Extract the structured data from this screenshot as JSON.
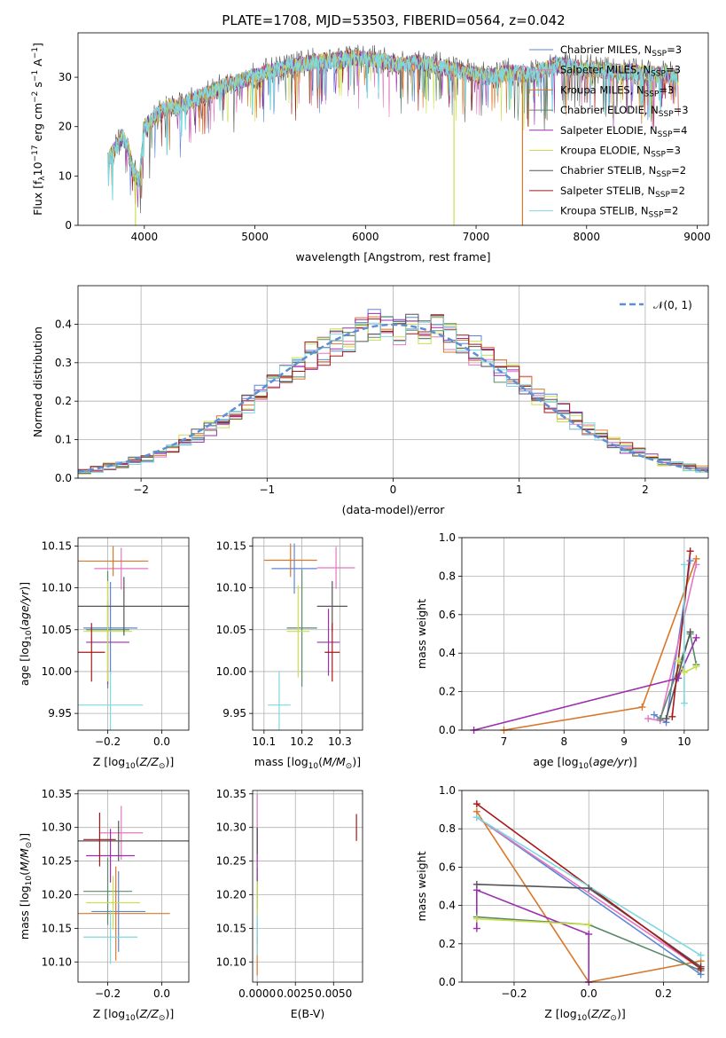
{
  "figure": {
    "title": "PLATE=1708, MJD=53503, FIBERID=0564, z=0.042"
  },
  "chart_data": [
    {
      "id": "spectrum",
      "type": "line",
      "xlabel": "wavelength [Angstrom, rest frame]",
      "ylabel": "Flux [f_λ10^-17 erg cm^-2 s^-1 A^-1]",
      "xlim": [
        3400,
        9100
      ],
      "ylim": [
        0,
        39
      ],
      "xticks": [
        4000,
        5000,
        6000,
        7000,
        8000,
        9000
      ],
      "yticks": [
        0,
        10,
        20,
        30
      ],
      "grid": false,
      "legend_position": "top-right",
      "legend": [
        {
          "label": "Chabrier MILES, N",
          "sub": "SSP",
          "suffix": "=3",
          "color": "#5f86d6"
        },
        {
          "label": "Salpeter MILES, N",
          "sub": "SSP",
          "suffix": "=3",
          "color": "#e377c2"
        },
        {
          "label": "Kroupa MILES, N",
          "sub": "SSP",
          "suffix": "=3",
          "color": "#d9782a"
        },
        {
          "label": "Chabrier ELODIE, N",
          "sub": "SSP",
          "suffix": "=3",
          "color": "#5a8a6a"
        },
        {
          "label": "Salpeter ELODIE, N",
          "sub": "SSP",
          "suffix": "=4",
          "color": "#9b2fae"
        },
        {
          "label": "Kroupa ELODIE, N",
          "sub": "SSP",
          "suffix": "=3",
          "color": "#c9e04a"
        },
        {
          "label": "Chabrier STELIB, N",
          "sub": "SSP",
          "suffix": "=2",
          "color": "#555555"
        },
        {
          "label": "Salpeter STELIB, N",
          "sub": "SSP",
          "suffix": "=2",
          "color": "#a81818"
        },
        {
          "label": "Kroupa STELIB, N",
          "sub": "SSP",
          "suffix": "=2",
          "color": "#7fd8df"
        }
      ],
      "continuum": {
        "x": [
          3670,
          3720,
          3800,
          3850,
          3900,
          3950,
          3980,
          4000,
          4050,
          4100,
          4200,
          4300,
          4400,
          4500,
          4700,
          4900,
          5100,
          5300,
          5500,
          5700,
          5900,
          6100,
          6300,
          6500,
          6700,
          6900,
          7100,
          7300,
          7500,
          7700,
          7900,
          8100,
          8300,
          8500,
          8700,
          8830
        ],
        "y": [
          13,
          15,
          18,
          16,
          11,
          9,
          15,
          20,
          21,
          22,
          24,
          24,
          25,
          26,
          28,
          29.5,
          31,
          32,
          33,
          33.5,
          34,
          33.5,
          32.5,
          33,
          32,
          31,
          30,
          31,
          30.5,
          32.5,
          32,
          31.5,
          31,
          31,
          30.5,
          30
        ]
      },
      "drops": [
        {
          "x": 3920,
          "color": "#c9e04a"
        },
        {
          "x": 6800,
          "color": "#c9e04a"
        },
        {
          "x": 7420,
          "color": "#d9782a"
        }
      ]
    },
    {
      "id": "residual-histogram",
      "type": "line",
      "xlabel": "(data-model)/error",
      "ylabel": "Normed distribution",
      "xlim": [
        -2.5,
        2.5
      ],
      "ylim": [
        0,
        0.5
      ],
      "xticks": [
        -2,
        -1,
        0,
        1,
        2
      ],
      "yticks": [
        0.0,
        0.1,
        0.2,
        0.3,
        0.4
      ],
      "grid": true,
      "legend_position": "top-right",
      "legend": [
        {
          "label": "𝒩(0, 1)",
          "color": "#5f8ed6"
        }
      ],
      "bin_width": 0.1,
      "model_colors": [
        "#5f86d6",
        "#e377c2",
        "#d9782a",
        "#5a8a6a",
        "#9b2fae",
        "#c9e04a",
        "#555555",
        "#a81818",
        "#7fd8df"
      ]
    },
    {
      "id": "age-vs-metallicity",
      "type": "scatter",
      "xlabel": "Z [log10(Z/Z⊙)]",
      "ylabel": "age  [log10(age/yr)]",
      "xlim": [
        -0.31,
        0.1
      ],
      "ylim": [
        9.93,
        10.16
      ],
      "xticks": [
        -0.2,
        0.0
      ],
      "yticks": [
        9.95,
        10.0,
        10.05,
        10.1,
        10.15
      ],
      "grid": true,
      "points": [
        {
          "x": -0.19,
          "y": 10.052,
          "xerr": 0.1,
          "yerr": 0.055,
          "color": "#5f86d6"
        },
        {
          "x": -0.15,
          "y": 10.123,
          "xerr": 0.1,
          "yerr": 0.025,
          "color": "#e377c2"
        },
        {
          "x": -0.18,
          "y": 10.132,
          "xerr": 0.13,
          "yerr": 0.018,
          "color": "#d9782a"
        },
        {
          "x": -0.2,
          "y": 10.05,
          "xerr": 0.08,
          "yerr": 0.07,
          "color": "#5a8a6a"
        },
        {
          "x": -0.2,
          "y": 10.035,
          "xerr": 0.08,
          "yerr": 0.05,
          "color": "#9b2fae"
        },
        {
          "x": -0.2,
          "y": 10.048,
          "xerr": 0.09,
          "yerr": 0.06,
          "color": "#c9e04a"
        },
        {
          "x": -0.14,
          "y": 10.078,
          "xerr": 0.24,
          "yerr": 0.035,
          "color": "#555555"
        },
        {
          "x": -0.26,
          "y": 10.023,
          "xerr": 0.05,
          "yerr": 0.035,
          "color": "#a81818"
        },
        {
          "x": -0.19,
          "y": 9.96,
          "xerr": 0.12,
          "yerr": 0.04,
          "color": "#7fd8df"
        }
      ]
    },
    {
      "id": "age-vs-mass",
      "type": "scatter",
      "xlabel": "mass [log10(M/M⊙)]",
      "ylabel": "",
      "xlim": [
        10.07,
        10.36
      ],
      "ylim": [
        9.93,
        10.16
      ],
      "xticks": [
        10.1,
        10.2,
        10.3
      ],
      "yticks": [
        9.95,
        10.0,
        10.05,
        10.1,
        10.15
      ],
      "grid": true,
      "points": [
        {
          "x": 10.18,
          "y": 10.123,
          "xerr": 0.06,
          "yerr": 0.03,
          "color": "#5f86d6"
        },
        {
          "x": 10.29,
          "y": 10.124,
          "xerr": 0.05,
          "yerr": 0.025,
          "color": "#e377c2"
        },
        {
          "x": 10.17,
          "y": 10.133,
          "xerr": 0.07,
          "yerr": 0.02,
          "color": "#d9782a"
        },
        {
          "x": 10.2,
          "y": 10.052,
          "xerr": 0.04,
          "yerr": 0.07,
          "color": "#5a8a6a"
        },
        {
          "x": 10.27,
          "y": 10.035,
          "xerr": 0.03,
          "yerr": 0.04,
          "color": "#9b2fae"
        },
        {
          "x": 10.19,
          "y": 10.048,
          "xerr": 0.03,
          "yerr": 0.055,
          "color": "#c9e04a"
        },
        {
          "x": 10.28,
          "y": 10.078,
          "xerr": 0.04,
          "yerr": 0.03,
          "color": "#555555"
        },
        {
          "x": 10.28,
          "y": 10.023,
          "xerr": 0.02,
          "yerr": 0.035,
          "color": "#a81818"
        },
        {
          "x": 10.14,
          "y": 9.96,
          "xerr": 0.03,
          "yerr": 0.04,
          "color": "#7fd8df"
        }
      ]
    },
    {
      "id": "mass-weight-vs-age",
      "type": "line",
      "xlabel": "age  [log10(age/yr)]",
      "ylabel": "mass weight",
      "xlim": [
        6.3,
        10.4
      ],
      "ylim": [
        0,
        1.0
      ],
      "xticks": [
        7,
        8,
        9,
        10
      ],
      "yticks": [
        0.0,
        0.2,
        0.4,
        0.6,
        0.8,
        1.0
      ],
      "grid": true,
      "series": [
        {
          "color": "#5f86d6",
          "x": [
            9.5,
            9.7,
            10.1
          ],
          "y": [
            0.08,
            0.04,
            0.88
          ]
        },
        {
          "color": "#e377c2",
          "x": [
            9.4,
            9.6,
            10.2
          ],
          "y": [
            0.06,
            0.05,
            0.86
          ]
        },
        {
          "color": "#d9782a",
          "x": [
            7.0,
            9.3,
            10.2
          ],
          "y": [
            0.0,
            0.12,
            0.89
          ]
        },
        {
          "color": "#5a8a6a",
          "x": [
            9.6,
            10.1,
            10.2
          ],
          "y": [
            0.06,
            0.5,
            0.34
          ]
        },
        {
          "color": "#9b2fae",
          "x": [
            6.5,
            9.9,
            10.2
          ],
          "y": [
            0.0,
            0.27,
            0.48
          ]
        },
        {
          "color": "#c9e04a",
          "x": [
            9.9,
            10.0,
            10.2
          ],
          "y": [
            0.36,
            0.3,
            0.33
          ]
        },
        {
          "color": "#555555",
          "x": [
            9.7,
            10.1
          ],
          "y": [
            0.06,
            0.51
          ]
        },
        {
          "color": "#a81818",
          "x": [
            9.8,
            10.1
          ],
          "y": [
            0.07,
            0.93
          ]
        },
        {
          "color": "#7fd8df",
          "x": [
            10.0,
            10.0
          ],
          "y": [
            0.14,
            0.86
          ]
        }
      ]
    },
    {
      "id": "mass-vs-metallicity",
      "type": "scatter",
      "xlabel": "Z [log10(Z/Z⊙)]",
      "ylabel": "mass [log10(M/M⊙)]",
      "xlim": [
        -0.31,
        0.1
      ],
      "ylim": [
        10.07,
        10.355
      ],
      "xticks": [
        -0.2,
        0.0
      ],
      "yticks": [
        10.1,
        10.15,
        10.2,
        10.25,
        10.3,
        10.35
      ],
      "grid": true,
      "points": [
        {
          "x": -0.16,
          "y": 10.175,
          "xerr": 0.1,
          "yerr": 0.06,
          "color": "#5f86d6"
        },
        {
          "x": -0.15,
          "y": 10.292,
          "xerr": 0.08,
          "yerr": 0.04,
          "color": "#e377c2"
        },
        {
          "x": -0.17,
          "y": 10.172,
          "xerr": 0.2,
          "yerr": 0.07,
          "color": "#d9782a"
        },
        {
          "x": -0.2,
          "y": 10.205,
          "xerr": 0.09,
          "yerr": 0.05,
          "color": "#5a8a6a"
        },
        {
          "x": -0.19,
          "y": 10.258,
          "xerr": 0.09,
          "yerr": 0.04,
          "color": "#9b2fae"
        },
        {
          "x": -0.18,
          "y": 10.188,
          "xerr": 0.1,
          "yerr": 0.04,
          "color": "#c9e04a"
        },
        {
          "x": -0.16,
          "y": 10.28,
          "xerr": 0.26,
          "yerr": 0.03,
          "color": "#555555"
        },
        {
          "x": -0.23,
          "y": 10.282,
          "xerr": 0.06,
          "yerr": 0.04,
          "color": "#a81818"
        },
        {
          "x": -0.19,
          "y": 10.137,
          "xerr": 0.1,
          "yerr": 0.04,
          "color": "#7fd8df"
        }
      ]
    },
    {
      "id": "mass-vs-ebv",
      "type": "scatter",
      "xlabel": "E(B-V)",
      "ylabel": "",
      "xlim": [
        -0.0003,
        0.0069
      ],
      "ylim": [
        10.07,
        10.355
      ],
      "xticks": [
        0.0,
        0.0025,
        0.005
      ],
      "xtick_labels": [
        "0.0000",
        "0.0025",
        "0.0050"
      ],
      "yticks": [
        10.1,
        10.15,
        10.2,
        10.25,
        10.3,
        10.35
      ],
      "grid": true,
      "points": [
        {
          "x": 0.0,
          "y": 10.175,
          "yerr": 0.05,
          "color": "#5f86d6"
        },
        {
          "x": 0.0,
          "y": 10.3,
          "yerr": 0.05,
          "color": "#e377c2"
        },
        {
          "x": 0.0,
          "y": 10.11,
          "yerr": 0.03,
          "color": "#d9782a"
        },
        {
          "x": 0.0,
          "y": 10.21,
          "yerr": 0.03,
          "color": "#5a8a6a"
        },
        {
          "x": 0.0,
          "y": 10.26,
          "yerr": 0.04,
          "color": "#9b2fae"
        },
        {
          "x": 0.0,
          "y": 10.19,
          "yerr": 0.03,
          "color": "#c9e04a"
        },
        {
          "x": 0.0,
          "y": 10.28,
          "yerr": 0.02,
          "color": "#555555"
        },
        {
          "x": 0.0065,
          "y": 10.3,
          "yerr": 0.02,
          "color": "#a81818"
        },
        {
          "x": 0.0,
          "y": 10.14,
          "yerr": 0.03,
          "color": "#7fd8df"
        }
      ]
    },
    {
      "id": "mass-weight-vs-metallicity",
      "type": "line",
      "xlabel": "Z [log10(Z/Z⊙)]",
      "ylabel": "mass weight",
      "xlim": [
        -0.34,
        0.32
      ],
      "ylim": [
        0,
        1.0
      ],
      "xticks": [
        -0.2,
        0.0,
        0.2
      ],
      "yticks": [
        0.0,
        0.2,
        0.4,
        0.6,
        0.8,
        1.0
      ],
      "grid": true,
      "series": [
        {
          "color": "#5f86d6",
          "x": [
            -0.3,
            0.3
          ],
          "y": [
            0.86,
            0.04
          ]
        },
        {
          "color": "#e377c2",
          "x": [
            -0.3,
            0.3
          ],
          "y": [
            0.86,
            0.07
          ]
        },
        {
          "color": "#d9782a",
          "x": [
            -0.3,
            0.0,
            0.3
          ],
          "y": [
            0.89,
            0.0,
            0.11
          ]
        },
        {
          "color": "#5a8a6a",
          "x": [
            -0.3,
            0.0,
            0.3
          ],
          "y": [
            0.34,
            0.3,
            0.06
          ]
        },
        {
          "color": "#9b2fae",
          "x": [
            -0.3,
            -0.3,
            0.0,
            0.0
          ],
          "y": [
            0.28,
            0.48,
            0.25,
            0.0
          ]
        },
        {
          "color": "#c9e04a",
          "x": [
            -0.3,
            0.0
          ],
          "y": [
            0.33,
            0.3
          ]
        },
        {
          "color": "#555555",
          "x": [
            -0.3,
            0.0,
            0.3
          ],
          "y": [
            0.51,
            0.49,
            0.08
          ]
        },
        {
          "color": "#a81818",
          "x": [
            -0.3,
            0.3
          ],
          "y": [
            0.93,
            0.07
          ]
        },
        {
          "color": "#7fd8df",
          "x": [
            -0.3,
            0.3
          ],
          "y": [
            0.86,
            0.14
          ]
        }
      ]
    }
  ]
}
